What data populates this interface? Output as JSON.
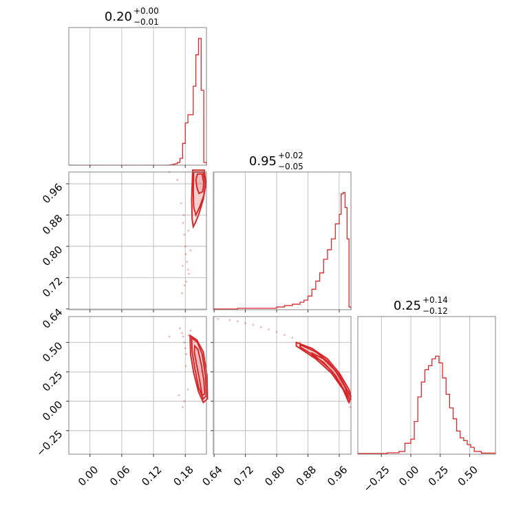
{
  "chart_data": {
    "type": "corner",
    "color": "#d62728",
    "grid": true,
    "parameters": [
      {
        "title": {
          "value": "0.20",
          "plus": "+0.00",
          "minus": "−0.01"
        },
        "range": [
          -0.04,
          0.22
        ],
        "ticks": [
          0.0,
          0.06,
          0.12,
          0.18
        ],
        "tick_labels": [
          "0.00",
          "0.06",
          "0.12",
          "0.18"
        ]
      },
      {
        "title": {
          "value": "0.95",
          "plus": "+0.02",
          "minus": "−0.05"
        },
        "range": [
          0.638,
          0.99
        ],
        "ticks": [
          0.64,
          0.72,
          0.8,
          0.88,
          0.96
        ],
        "tick_labels": [
          "0.64",
          "0.72",
          "0.80",
          "0.88",
          "0.96"
        ]
      },
      {
        "title": {
          "value": "0.25",
          "plus": "+0.14",
          "minus": "−0.12"
        },
        "range": [
          -0.45,
          0.72
        ],
        "ticks": [
          -0.25,
          0.0,
          0.25,
          0.5
        ],
        "tick_labels": [
          "−0.25",
          "0.00",
          "0.25",
          "0.50"
        ]
      }
    ],
    "histograms": [
      {
        "param": 0,
        "bins": [
          [
            0.15,
            0.155,
            0.002
          ],
          [
            0.155,
            0.16,
            0.005
          ],
          [
            0.16,
            0.165,
            0.01
          ],
          [
            0.165,
            0.17,
            0.02
          ],
          [
            0.17,
            0.175,
            0.05
          ],
          [
            0.175,
            0.18,
            0.16
          ],
          [
            0.18,
            0.185,
            0.31
          ],
          [
            0.185,
            0.19,
            0.37
          ],
          [
            0.19,
            0.195,
            0.37
          ],
          [
            0.195,
            0.2,
            0.58
          ],
          [
            0.2,
            0.205,
            0.81
          ],
          [
            0.205,
            0.21,
            0.93
          ],
          [
            0.21,
            0.215,
            0.55
          ],
          [
            0.215,
            0.22,
            0.02
          ]
        ]
      },
      {
        "param": 1,
        "bins": [
          [
            0.64,
            0.7,
            0.005
          ],
          [
            0.7,
            0.8,
            0.01
          ],
          [
            0.8,
            0.82,
            0.02
          ],
          [
            0.82,
            0.84,
            0.03
          ],
          [
            0.84,
            0.86,
            0.04
          ],
          [
            0.86,
            0.87,
            0.055
          ],
          [
            0.87,
            0.88,
            0.07
          ],
          [
            0.88,
            0.89,
            0.1
          ],
          [
            0.89,
            0.9,
            0.15
          ],
          [
            0.9,
            0.91,
            0.21
          ],
          [
            0.91,
            0.92,
            0.27
          ],
          [
            0.92,
            0.93,
            0.37
          ],
          [
            0.93,
            0.94,
            0.44
          ],
          [
            0.94,
            0.95,
            0.52
          ],
          [
            0.95,
            0.96,
            0.63
          ],
          [
            0.96,
            0.965,
            0.7
          ],
          [
            0.965,
            0.97,
            0.85
          ],
          [
            0.97,
            0.975,
            0.86
          ],
          [
            0.975,
            0.98,
            0.75
          ],
          [
            0.98,
            0.985,
            0.52
          ],
          [
            0.985,
            0.99,
            0.02
          ]
        ]
      },
      {
        "param": 2,
        "bins": [
          [
            -0.45,
            -0.2,
            0.005
          ],
          [
            -0.2,
            -0.1,
            0.01
          ],
          [
            -0.1,
            -0.05,
            0.02
          ],
          [
            -0.05,
            0.0,
            0.08
          ],
          [
            0.0,
            0.03,
            0.11
          ],
          [
            0.03,
            0.06,
            0.24
          ],
          [
            0.06,
            0.09,
            0.42
          ],
          [
            0.09,
            0.12,
            0.53
          ],
          [
            0.12,
            0.15,
            0.62
          ],
          [
            0.15,
            0.18,
            0.65
          ],
          [
            0.18,
            0.21,
            0.7
          ],
          [
            0.21,
            0.24,
            0.72
          ],
          [
            0.24,
            0.27,
            0.67
          ],
          [
            0.27,
            0.3,
            0.56
          ],
          [
            0.3,
            0.33,
            0.44
          ],
          [
            0.33,
            0.36,
            0.34
          ],
          [
            0.36,
            0.39,
            0.26
          ],
          [
            0.39,
            0.42,
            0.17
          ],
          [
            0.42,
            0.45,
            0.12
          ],
          [
            0.45,
            0.48,
            0.1
          ],
          [
            0.48,
            0.51,
            0.07
          ],
          [
            0.51,
            0.54,
            0.05
          ],
          [
            0.54,
            0.6,
            0.02
          ],
          [
            0.6,
            0.72,
            0.008
          ]
        ]
      }
    ],
    "scatter_panels": [
      {
        "x_param": 0,
        "y_param": 1,
        "samples": [
          [
            0.15,
            0.99
          ],
          [
            0.165,
            0.97
          ],
          [
            0.172,
            0.91
          ],
          [
            0.176,
            0.86
          ],
          [
            0.178,
            0.83
          ],
          [
            0.18,
            0.8
          ],
          [
            0.181,
            0.78
          ],
          [
            0.183,
            0.76
          ],
          [
            0.185,
            0.74
          ],
          [
            0.182,
            0.71
          ],
          [
            0.187,
            0.73
          ],
          [
            0.179,
            0.7
          ],
          [
            0.19,
            0.79
          ],
          [
            0.177,
            0.88
          ],
          [
            0.186,
            0.84
          ],
          [
            0.175,
            0.75
          ],
          [
            0.174,
            0.68
          ]
        ],
        "contours": [
          [
            [
              0.203,
              0.985
            ],
            [
              0.212,
              0.985
            ],
            [
              0.215,
              0.96
            ],
            [
              0.213,
              0.94
            ],
            [
              0.206,
              0.935
            ],
            [
              0.202,
              0.95
            ],
            [
              0.2,
              0.97
            ]
          ],
          [
            [
              0.196,
              0.99
            ],
            [
              0.214,
              0.99
            ],
            [
              0.218,
              0.96
            ],
            [
              0.215,
              0.93
            ],
            [
              0.207,
              0.9
            ],
            [
              0.2,
              0.88
            ],
            [
              0.196,
              0.9
            ],
            [
              0.195,
              0.94
            ]
          ],
          [
            [
              0.194,
              0.995
            ],
            [
              0.216,
              0.995
            ],
            [
              0.219,
              0.96
            ],
            [
              0.214,
              0.92
            ],
            [
              0.205,
              0.88
            ],
            [
              0.199,
              0.86
            ],
            [
              0.195,
              0.85
            ],
            [
              0.193,
              0.87
            ],
            [
              0.192,
              0.92
            ]
          ]
        ]
      },
      {
        "x_param": 0,
        "y_param": 2,
        "samples": [
          [
            0.17,
            0.62
          ],
          [
            0.174,
            0.58
          ],
          [
            0.176,
            0.55
          ],
          [
            0.178,
            0.5
          ],
          [
            0.18,
            0.45
          ],
          [
            0.182,
            0.4
          ],
          [
            0.185,
            0.1
          ],
          [
            0.178,
            0.0
          ],
          [
            0.175,
            -0.05
          ],
          [
            0.19,
            0.6
          ],
          [
            0.186,
            0.56
          ],
          [
            0.15,
            0.55
          ],
          [
            0.168,
            0.05
          ],
          [
            0.181,
            0.3
          ]
        ],
        "contours": [
          [
            [
              0.198,
              0.47
            ],
            [
              0.204,
              0.44
            ],
            [
              0.21,
              0.32
            ],
            [
              0.215,
              0.18
            ],
            [
              0.217,
              0.06
            ],
            [
              0.212,
              0.05
            ],
            [
              0.207,
              0.18
            ],
            [
              0.201,
              0.32
            ],
            [
              0.197,
              0.42
            ]
          ],
          [
            [
              0.192,
              0.54
            ],
            [
              0.203,
              0.5
            ],
            [
              0.212,
              0.4
            ],
            [
              0.218,
              0.22
            ],
            [
              0.22,
              0.05
            ],
            [
              0.214,
              0.02
            ],
            [
              0.205,
              0.12
            ],
            [
              0.198,
              0.28
            ],
            [
              0.193,
              0.42
            ]
          ],
          [
            [
              0.189,
              0.56
            ],
            [
              0.202,
              0.52
            ],
            [
              0.214,
              0.42
            ],
            [
              0.221,
              0.22
            ],
            [
              0.222,
              0.02
            ],
            [
              0.214,
              -0.01
            ],
            [
              0.205,
              0.08
            ],
            [
              0.196,
              0.24
            ],
            [
              0.19,
              0.4
            ]
          ]
        ]
      },
      {
        "x_param": 1,
        "y_param": 2,
        "samples": [
          [
            0.65,
            0.7
          ],
          [
            0.68,
            0.69
          ],
          [
            0.7,
            0.68
          ],
          [
            0.72,
            0.665
          ],
          [
            0.74,
            0.65
          ],
          [
            0.76,
            0.63
          ],
          [
            0.78,
            0.61
          ],
          [
            0.8,
            0.59
          ],
          [
            0.82,
            0.565
          ],
          [
            0.84,
            0.54
          ],
          [
            0.86,
            0.5
          ],
          [
            0.88,
            0.46
          ],
          [
            0.9,
            0.42
          ],
          [
            0.92,
            0.37
          ],
          [
            0.94,
            0.31
          ],
          [
            0.96,
            0.22
          ],
          [
            0.975,
            0.12
          ],
          [
            0.985,
            0.02
          ],
          [
            0.988,
            -0.05
          ]
        ],
        "contours": [
          [
            [
              0.89,
              0.41
            ],
            [
              0.92,
              0.36
            ],
            [
              0.95,
              0.26
            ],
            [
              0.975,
              0.12
            ],
            [
              0.985,
              0.02
            ],
            [
              0.975,
              0.08
            ],
            [
              0.95,
              0.22
            ],
            [
              0.92,
              0.33
            ],
            [
              0.89,
              0.39
            ]
          ],
          [
            [
              0.86,
              0.48
            ],
            [
              0.9,
              0.42
            ],
            [
              0.93,
              0.34
            ],
            [
              0.96,
              0.22
            ],
            [
              0.983,
              0.08
            ],
            [
              0.99,
              0.02
            ],
            [
              0.983,
              0.0
            ],
            [
              0.965,
              0.14
            ],
            [
              0.94,
              0.26
            ],
            [
              0.9,
              0.38
            ],
            [
              0.86,
              0.46
            ]
          ],
          [
            [
              0.85,
              0.5
            ],
            [
              0.89,
              0.45
            ],
            [
              0.93,
              0.36
            ],
            [
              0.96,
              0.24
            ],
            [
              0.985,
              0.1
            ],
            [
              0.99,
              0.04
            ],
            [
              0.985,
              -0.01
            ],
            [
              0.97,
              0.1
            ],
            [
              0.94,
              0.24
            ],
            [
              0.9,
              0.36
            ],
            [
              0.85,
              0.47
            ]
          ]
        ]
      }
    ]
  }
}
